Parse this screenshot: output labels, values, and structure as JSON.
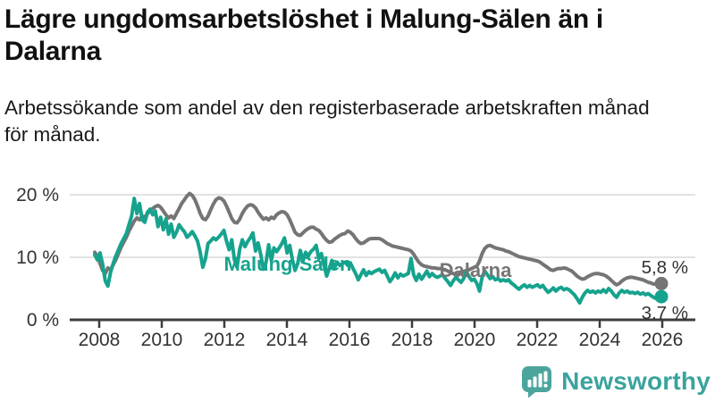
{
  "header": {
    "title_lines": [
      "Lägre ungdomsarbetslöshet i Malung-Sälen än i",
      "Dalarna"
    ],
    "subtitle_lines": [
      "Arbetssökande som andel av den registerbaserade arbetskraften månad",
      "för månad."
    ]
  },
  "chart_data": {
    "type": "line",
    "title": "Lägre ungdomsarbetslöshet i Malung-Sälen än i Dalarna",
    "subtitle": "Arbetssökande som andel av den registerbaserade arbetskraften månad för månad.",
    "unit": "%",
    "x_start": "2008-01",
    "x_end": "2025-12",
    "points_per_year": 12,
    "ylim": [
      0,
      22
    ],
    "grid": "horizontal",
    "x_tick_labels": [
      "2008",
      "2010",
      "2012",
      "2014",
      "2016",
      "2018",
      "2020",
      "2022",
      "2024",
      "2026"
    ],
    "y_ticks": [
      {
        "label": "0 %",
        "value": 0
      },
      {
        "label": "10 %",
        "value": 10
      },
      {
        "label": "20 %",
        "value": 20
      }
    ],
    "series": [
      {
        "name": "Dalarna",
        "color": "#757575",
        "end_label": "5,8 %",
        "end_value": 5.8,
        "values": [
          10.8,
          10.2,
          9.0,
          7.9,
          7.4,
          8.3,
          8.0,
          8.8,
          9.6,
          10.6,
          11.6,
          12.4,
          13.2,
          14.2,
          15.0,
          15.8,
          16.3,
          16.0,
          16.6,
          16.4,
          17.0,
          17.4,
          17.8,
          18.1,
          18.3,
          18.0,
          17.4,
          16.8,
          16.3,
          16.6,
          16.2,
          17.0,
          17.8,
          18.6,
          19.2,
          19.8,
          20.2,
          19.9,
          19.2,
          18.2,
          17.0,
          16.2,
          16.0,
          16.6,
          17.6,
          18.5,
          19.2,
          19.5,
          19.4,
          19.0,
          18.2,
          17.2,
          16.2,
          15.6,
          15.5,
          16.1,
          17.0,
          17.7,
          18.2,
          18.4,
          18.3,
          17.9,
          17.2,
          16.6,
          16.1,
          16.3,
          16.0,
          16.4,
          16.2,
          16.8,
          17.1,
          17.3,
          17.2,
          16.8,
          16.0,
          15.0,
          14.0,
          13.6,
          13.5,
          13.9,
          14.3,
          14.6,
          14.8,
          14.8,
          14.5,
          14.3,
          13.8,
          13.2,
          12.7,
          12.4,
          12.5,
          12.9,
          13.2,
          13.5,
          13.7,
          13.8,
          14.2,
          14.0,
          13.6,
          13.0,
          12.5,
          12.2,
          12.3,
          12.6,
          12.9,
          13.0,
          13.0,
          13.0,
          13.0,
          12.8,
          12.5,
          12.2,
          12.0,
          11.8,
          11.7,
          11.6,
          11.5,
          11.4,
          11.3,
          11.2,
          11.0,
          10.5,
          9.8,
          9.2,
          8.8,
          8.6,
          8.5,
          8.4,
          8.3,
          8.3,
          8.2,
          8.2,
          8.1,
          8.0,
          7.8,
          7.6,
          7.4,
          7.2,
          7.3,
          7.5,
          7.7,
          7.9,
          8.0,
          8.2,
          8.4,
          8.6,
          9.4,
          10.6,
          11.4,
          11.8,
          11.9,
          11.7,
          11.5,
          11.4,
          11.3,
          11.2,
          11.0,
          10.9,
          10.7,
          10.5,
          10.3,
          10.1,
          10.0,
          9.9,
          9.8,
          9.7,
          9.6,
          9.5,
          9.4,
          9.2,
          8.9,
          8.6,
          8.3,
          8.0,
          7.9,
          8.1,
          8.2,
          8.2,
          8.3,
          8.2,
          8.0,
          7.8,
          7.4,
          7.0,
          6.7,
          6.5,
          6.6,
          6.9,
          7.1,
          7.3,
          7.4,
          7.4,
          7.3,
          7.2,
          7.0,
          6.7,
          6.3,
          5.9,
          5.6,
          5.8,
          6.2,
          6.5,
          6.7,
          6.8,
          6.8,
          6.7,
          6.6,
          6.5,
          6.4,
          6.2,
          6.0,
          5.9,
          5.7,
          5.8,
          5.9,
          5.8
        ]
      },
      {
        "name": "Malung-Sälen",
        "color": "#16A38E",
        "end_label": "3,7 %",
        "end_value": 3.7,
        "values": [
          10.4,
          9.6,
          10.7,
          8.9,
          6.2,
          5.4,
          7.6,
          9.0,
          10.2,
          11.2,
          12.2,
          13.0,
          13.8,
          15.2,
          16.6,
          19.4,
          17.0,
          18.6,
          16.0,
          15.6,
          17.2,
          17.7,
          16.8,
          17.4,
          14.9,
          16.4,
          14.4,
          16.1,
          13.7,
          15.3,
          13.2,
          14.0,
          15.2,
          14.6,
          14.1,
          13.2,
          13.6,
          14.1,
          13.4,
          12.6,
          10.8,
          8.4,
          9.8,
          12.2,
          12.6,
          13.1,
          12.8,
          13.2,
          13.7,
          14.3,
          12.6,
          11.2,
          12.8,
          9.6,
          8.4,
          11.3,
          12.8,
          11.7,
          12.5,
          13.1,
          13.9,
          11.0,
          12.3,
          10.4,
          8.1,
          9.2,
          12.0,
          9.5,
          11.5,
          10.9,
          11.5,
          12.2,
          13.1,
          10.7,
          11.9,
          9.6,
          7.9,
          9.0,
          11.1,
          9.4,
          10.8,
          10.2,
          10.9,
          11.3,
          11.9,
          9.8,
          10.6,
          8.8,
          7.0,
          8.2,
          9.5,
          8.4,
          9.2,
          8.7,
          9.0,
          9.2,
          8.7,
          9.1,
          8.2,
          7.4,
          6.4,
          7.2,
          8.0,
          7.1,
          7.7,
          7.4,
          7.7,
          7.9,
          8.1,
          7.6,
          7.9,
          7.0,
          6.1,
          6.7,
          7.5,
          6.7,
          7.3,
          7.0,
          7.2,
          7.4,
          9.8,
          7.2,
          6.3,
          7.3,
          6.5,
          7.1,
          7.8,
          6.9,
          7.4,
          7.0,
          6.8,
          7.0,
          7.2,
          6.6,
          6.1,
          5.5,
          6.2,
          6.8,
          6.4,
          6.0,
          6.6,
          7.7,
          6.9,
          6.3,
          6.5,
          5.8,
          4.6,
          6.9,
          7.8,
          7.2,
          6.6,
          6.9,
          6.4,
          6.6,
          6.2,
          6.4,
          6.2,
          6.4,
          5.9,
          5.6,
          5.2,
          4.9,
          5.3,
          5.6,
          5.2,
          5.5,
          5.2,
          5.4,
          5.6,
          5.2,
          5.5,
          4.9,
          4.4,
          4.7,
          5.1,
          4.6,
          5.0,
          5.2,
          4.8,
          5.0,
          4.8,
          4.4,
          4.0,
          3.4,
          2.7,
          3.6,
          4.3,
          4.7,
          4.4,
          4.6,
          4.3,
          4.6,
          4.4,
          4.8,
          4.4,
          5.0,
          4.6,
          4.0,
          3.6,
          4.3,
          4.7,
          4.4,
          4.6,
          4.3,
          4.4,
          4.2,
          4.4,
          4.1,
          4.3,
          4.0,
          4.2,
          3.9,
          3.6,
          3.4,
          3.8,
          3.7
        ]
      }
    ]
  },
  "footer": {
    "brand": "Newsworthy",
    "brand_color": "#3BA39E",
    "icon_color": "#4BA59D"
  }
}
